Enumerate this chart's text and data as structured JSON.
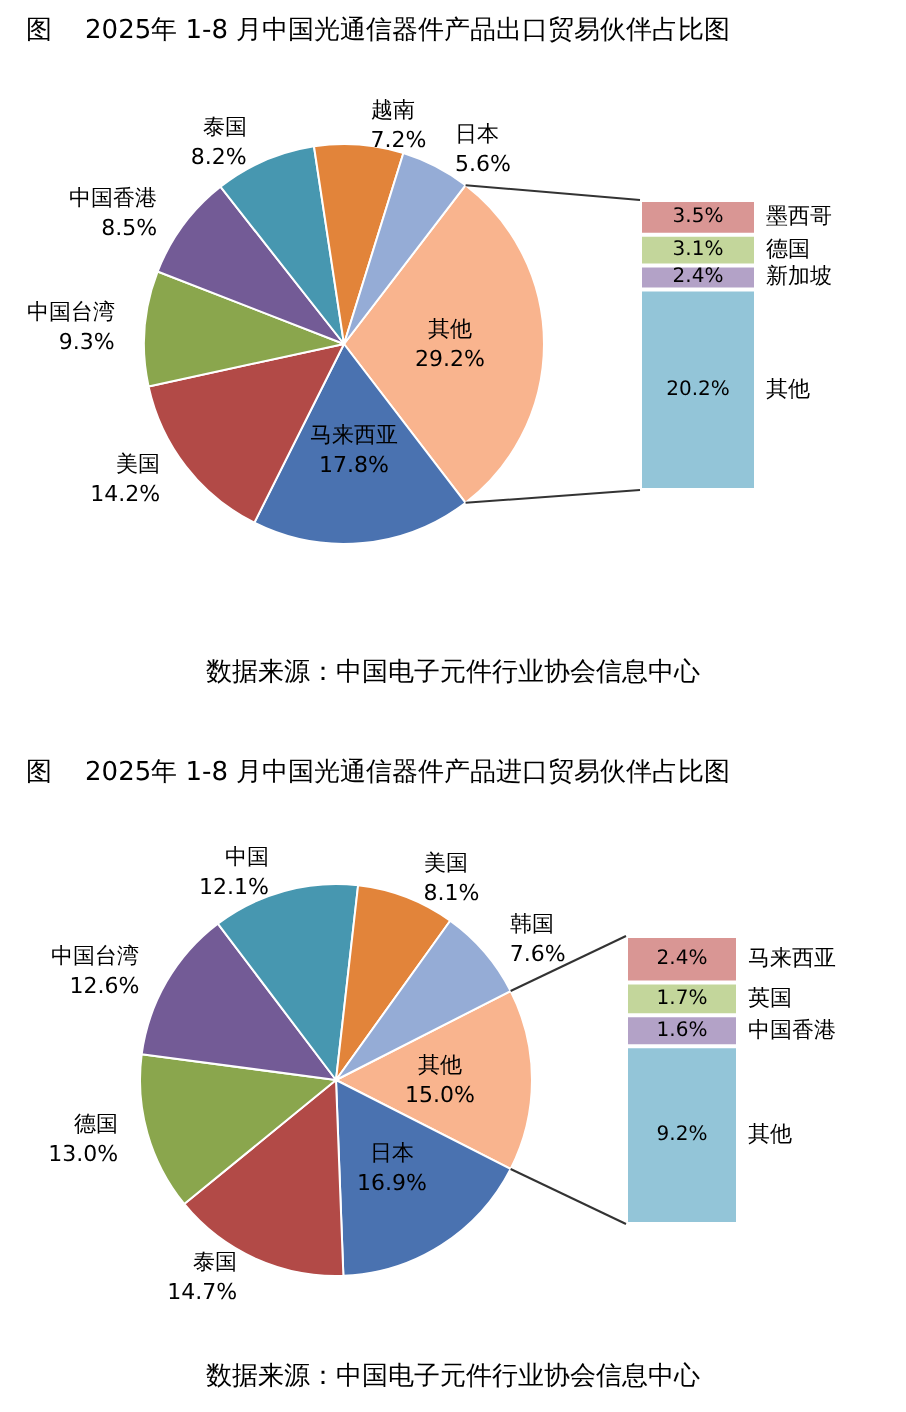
{
  "chart_data": [
    {
      "type": "pie",
      "title": "图    2025年 1-8 月中国光通信器件产品出口贸易伙伴占比图",
      "annotations": [
        "数据来源：中国电子元件行业协会信息中心"
      ],
      "legend": false,
      "categories": [
        "其他",
        "马来西亚",
        "美国",
        "中国台湾",
        "中国香港",
        "泰国",
        "越南",
        "日本"
      ],
      "values": [
        29.2,
        17.8,
        14.2,
        9.3,
        8.5,
        8.2,
        7.2,
        5.6
      ],
      "value_labels": [
        "29.2%",
        "17.8%",
        "14.2%",
        "9.3%",
        "8.5%",
        "8.2%",
        "7.2%",
        "5.6%"
      ],
      "colors": [
        "#f9b48e",
        "#4a72b0",
        "#b24a47",
        "#8aa64d",
        "#735b96",
        "#4797b0",
        "#e2843a",
        "#95acd6"
      ]
    },
    {
      "type": "bar",
      "stacked": true,
      "legend": false,
      "categories": [
        null
      ],
      "series": [
        {
          "name": "其他",
          "color": "#93c5d8",
          "values": [
            20.2
          ],
          "value_labels": [
            "20.2%"
          ]
        },
        {
          "name": "新加坡",
          "color": "#b3a2c7",
          "values": [
            2.4
          ],
          "value_labels": [
            "2.4%"
          ]
        },
        {
          "name": "德国",
          "color": "#c3d69b",
          "values": [
            3.1
          ],
          "value_labels": [
            "3.1%"
          ]
        },
        {
          "name": "墨西哥",
          "color": "#d99694",
          "values": [
            3.5
          ],
          "value_labels": [
            "3.5%"
          ]
        }
      ]
    },
    {
      "type": "pie",
      "title": "图    2025年 1-8 月中国光通信器件产品进口贸易伙伴占比图",
      "annotations": [
        "数据来源：中国电子元件行业协会信息中心"
      ],
      "legend": false,
      "categories": [
        "其他",
        "日本",
        "泰国",
        "德国",
        "中国台湾",
        "中国",
        "美国",
        "韩国"
      ],
      "values": [
        15.0,
        16.9,
        14.7,
        13.0,
        12.6,
        12.1,
        8.1,
        7.6
      ],
      "value_labels": [
        "15.0%",
        "16.9%",
        "14.7%",
        "13.0%",
        "12.6%",
        "12.1%",
        "8.1%",
        "7.6%"
      ],
      "colors": [
        "#f9b48e",
        "#4a72b0",
        "#b24a47",
        "#8aa64d",
        "#735b96",
        "#4797b0",
        "#e2843a",
        "#95acd6"
      ]
    },
    {
      "type": "bar",
      "stacked": true,
      "legend": false,
      "categories": [
        null
      ],
      "series": [
        {
          "name": "其他",
          "color": "#93c5d8",
          "values": [
            9.2
          ],
          "value_labels": [
            "9.2%"
          ]
        },
        {
          "name": "中国香港",
          "color": "#b3a2c7",
          "values": [
            1.6
          ],
          "value_labels": [
            "1.6%"
          ]
        },
        {
          "name": "英国",
          "color": "#c3d69b",
          "values": [
            1.7
          ],
          "value_labels": [
            "1.7%"
          ]
        },
        {
          "name": "马来西亚",
          "color": "#d99694",
          "values": [
            2.4
          ],
          "value_labels": [
            "2.4%"
          ]
        }
      ]
    }
  ]
}
